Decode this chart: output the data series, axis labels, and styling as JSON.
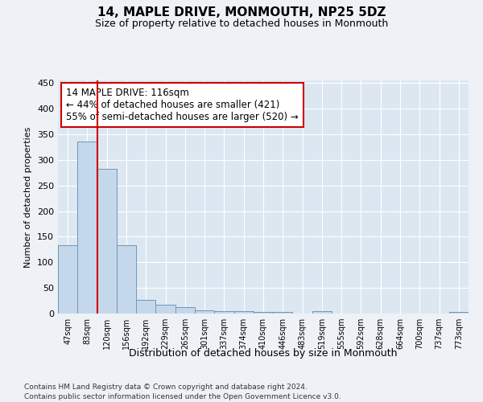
{
  "title1": "14, MAPLE DRIVE, MONMOUTH, NP25 5DZ",
  "title2": "Size of property relative to detached houses in Monmouth",
  "xlabel": "Distribution of detached houses by size in Monmouth",
  "ylabel": "Number of detached properties",
  "categories": [
    "47sqm",
    "83sqm",
    "120sqm",
    "156sqm",
    "192sqm",
    "229sqm",
    "265sqm",
    "301sqm",
    "337sqm",
    "374sqm",
    "410sqm",
    "446sqm",
    "483sqm",
    "519sqm",
    "555sqm",
    "592sqm",
    "628sqm",
    "664sqm",
    "700sqm",
    "737sqm",
    "773sqm"
  ],
  "values": [
    134,
    336,
    282,
    134,
    27,
    17,
    12,
    7,
    5,
    4,
    3,
    3,
    0,
    4,
    0,
    0,
    0,
    0,
    0,
    0,
    3
  ],
  "bar_color": "#c5d8eb",
  "bar_edge_color": "#7096b8",
  "vline_color": "#cc0000",
  "vline_bar_index": 2,
  "annotation_text": "14 MAPLE DRIVE: 116sqm\n← 44% of detached houses are smaller (421)\n55% of semi-detached houses are larger (520) →",
  "annotation_box_color": "#ffffff",
  "annotation_box_edge_color": "#cc0000",
  "ylim": [
    0,
    455
  ],
  "yticks": [
    0,
    50,
    100,
    150,
    200,
    250,
    300,
    350,
    400,
    450
  ],
  "footer1": "Contains HM Land Registry data © Crown copyright and database right 2024.",
  "footer2": "Contains public sector information licensed under the Open Government Licence v3.0.",
  "bg_color": "#eef2f7",
  "plot_bg_color": "#dde7f2"
}
